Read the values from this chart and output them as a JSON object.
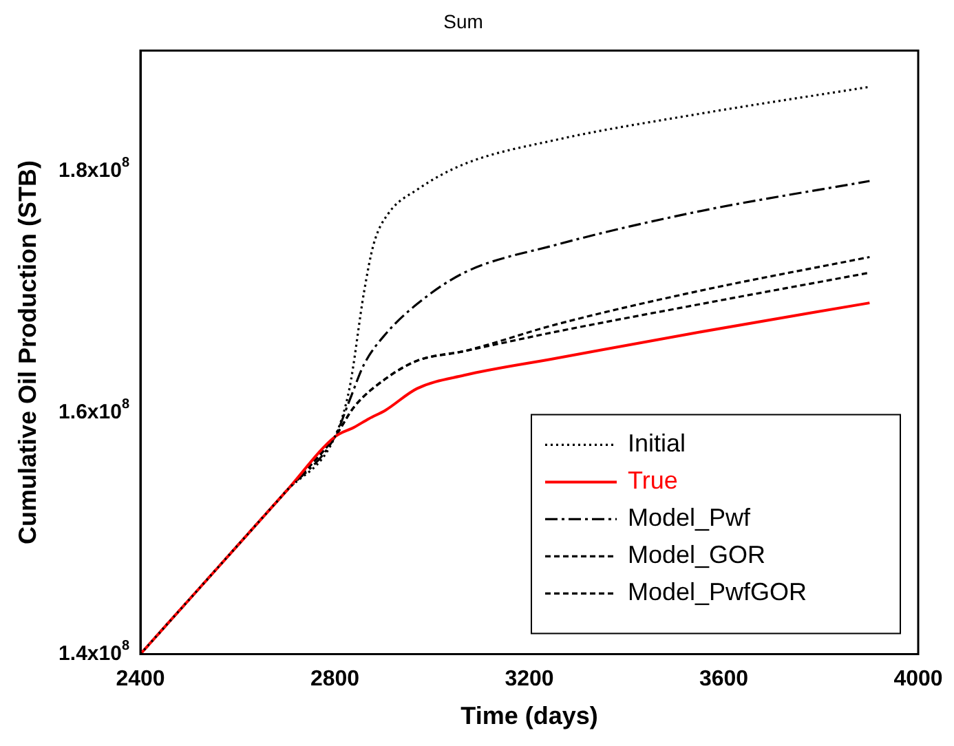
{
  "chart_data": {
    "type": "line",
    "title": "Sum",
    "xlabel": "Time (days)",
    "ylabel": "Cumulative Oil Production (STB)",
    "xlim": [
      2400,
      4000
    ],
    "xticks": [
      2400,
      2800,
      3200,
      3600,
      4000
    ],
    "ylim": [
      140000000,
      190000000
    ],
    "yticks": [
      {
        "value": 140000000,
        "label": "1.4x10$^{8}$"
      },
      {
        "value": 160000000,
        "label": "1.6x10$^{8}$"
      },
      {
        "value": 180000000,
        "label": "1.8x10$^{8}$"
      }
    ],
    "grid": false,
    "legend": "bottom right",
    "marker": "none",
    "series": [
      {
        "name": "Initial",
        "color": "#000000",
        "line_style": "dotted",
        "x": [
          2400,
          2500,
          2600,
          2700,
          2800,
          2830,
          2860,
          2880,
          2910,
          2970,
          3066,
          3254,
          3540,
          3900
        ],
        "values": [
          140000000,
          144500000,
          149000000,
          153500000,
          158000000,
          162000000,
          170000000,
          174000000,
          176500000,
          178500000,
          180600000,
          182600000,
          184700000,
          187000000
        ]
      },
      {
        "name": "True",
        "color": "#ff0000",
        "line_style": "solid",
        "x": [
          2400,
          2500,
          2600,
          2700,
          2800,
          2840,
          2870,
          2904,
          2969,
          3066,
          3254,
          3539,
          3900
        ],
        "values": [
          140000000,
          144500000,
          149000000,
          153500000,
          158000000,
          158800000,
          159500000,
          160200000,
          162000000,
          163100000,
          164500000,
          166600000,
          169100000
        ]
      },
      {
        "name": "Model_Pwf",
        "color": "#000000",
        "line_style": "dashdot",
        "x": [
          2400,
          2500,
          2600,
          2700,
          2800,
          2830,
          2860,
          2904,
          2969,
          3066,
          3254,
          3539,
          3900
        ],
        "values": [
          140000000,
          144500000,
          149000000,
          153500000,
          158000000,
          161000000,
          164000000,
          166500000,
          169000000,
          171600000,
          173900000,
          176600000,
          179200000
        ]
      },
      {
        "name": "Model_GOR",
        "color": "#000000",
        "line_style": "dashed",
        "x": [
          2400,
          2500,
          2600,
          2700,
          2800,
          2840,
          2904,
          2969,
          3066,
          3254,
          3539,
          3900
        ],
        "values": [
          140000000,
          144500000,
          149000000,
          153500000,
          158000000,
          160500000,
          162800000,
          164300000,
          165100000,
          167300000,
          170000000,
          172900000
        ]
      },
      {
        "name": "Model_PwfGOR",
        "color": "#000000",
        "line_style": "dashed",
        "x": [
          2400,
          2500,
          2600,
          2700,
          2800,
          2840,
          2904,
          2969,
          3066,
          3254,
          3539,
          3900
        ],
        "values": [
          140000000,
          144500000,
          149000000,
          153500000,
          158000000,
          160500000,
          162800000,
          164300000,
          165100000,
          166700000,
          168900000,
          171600000
        ]
      }
    ]
  }
}
